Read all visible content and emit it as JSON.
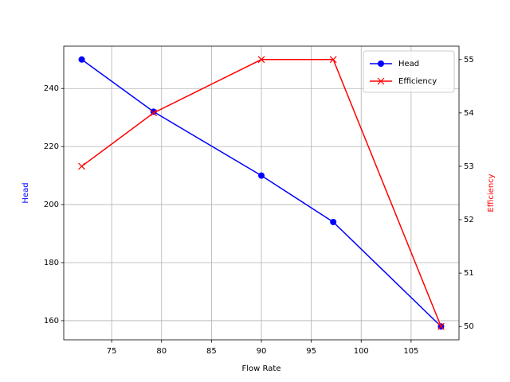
{
  "chart_data": {
    "type": "line",
    "x_label": "Flow Rate",
    "y_label": "Head",
    "y2_label": "Efficiency",
    "x": [
      72,
      79.2,
      90,
      97.2,
      108
    ],
    "series": [
      {
        "name": "Head",
        "color": "#0000ff",
        "marker": "o",
        "values": [
          250,
          232,
          210,
          194,
          158
        ]
      },
      {
        "name": "Efficiency",
        "color": "#ff0000",
        "marker": "x",
        "axis": "y2",
        "values": [
          53,
          54,
          55,
          55,
          50
        ]
      }
    ],
    "xlim": [
      70.2,
      109.8
    ],
    "xticks": [
      75,
      80,
      85,
      90,
      95,
      100,
      105
    ],
    "ylim": [
      153.4,
      254.6
    ],
    "yticks": [
      160,
      180,
      200,
      220,
      240
    ],
    "y2lim": [
      49.75,
      55.25
    ],
    "y2ticks": [
      50,
      51,
      52,
      53,
      54,
      55
    ],
    "grid": true,
    "legend": "upper-right"
  }
}
